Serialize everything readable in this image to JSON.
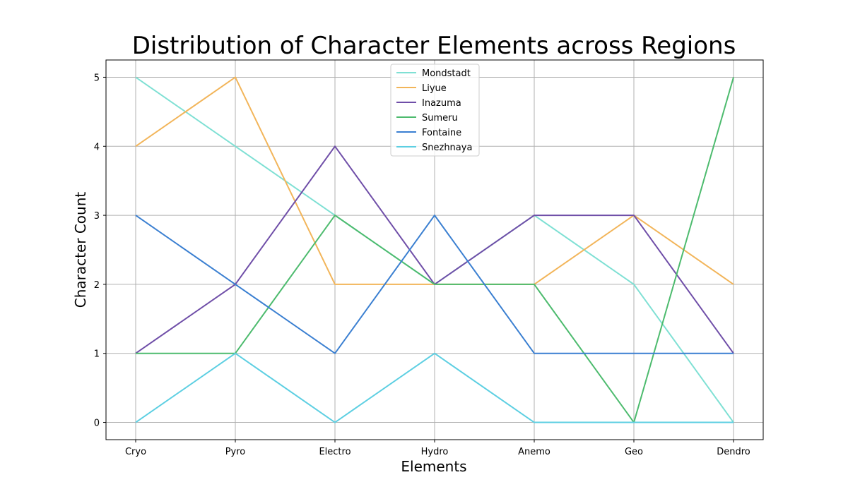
{
  "chart_data": {
    "type": "line",
    "title": "Distribution of Character Elements across Regions",
    "xlabel": "Elements",
    "ylabel": "Character Count",
    "categories": [
      "Cryo",
      "Pyro",
      "Electro",
      "Hydro",
      "Anemo",
      "Geo",
      "Dendro"
    ],
    "ylim": [
      -0.25,
      5.25
    ],
    "yticks": [
      "0",
      "1",
      "2",
      "3",
      "4",
      "5"
    ],
    "grid": true,
    "legend_position": "upper center",
    "series": [
      {
        "name": "Mondstadt",
        "color": "#7fe0d4",
        "values": [
          5,
          4,
          3,
          2,
          3,
          2,
          0
        ]
      },
      {
        "name": "Liyue",
        "color": "#f2b55a",
        "values": [
          4,
          5,
          2,
          2,
          2,
          3,
          2
        ]
      },
      {
        "name": "Inazuma",
        "color": "#6f4ea8",
        "values": [
          1,
          2,
          4,
          2,
          3,
          3,
          1
        ]
      },
      {
        "name": "Sumeru",
        "color": "#4dbb6e",
        "values": [
          1,
          1,
          3,
          2,
          2,
          0,
          5
        ]
      },
      {
        "name": "Fontaine",
        "color": "#3a7fd1",
        "values": [
          3,
          2,
          1,
          3,
          1,
          1,
          1
        ]
      },
      {
        "name": "Snezhnaya",
        "color": "#5dcfe2",
        "values": [
          0,
          1,
          0,
          1,
          0,
          0,
          0
        ]
      }
    ]
  }
}
